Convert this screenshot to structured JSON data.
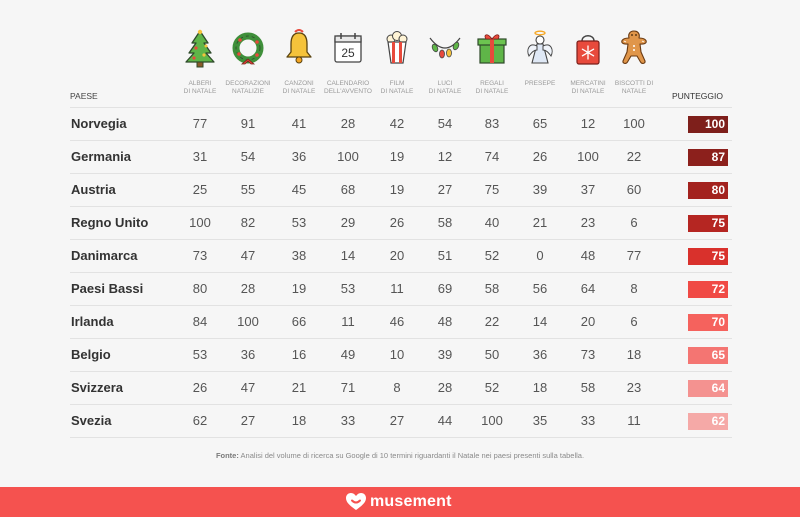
{
  "chart_data": {
    "type": "table",
    "columns": [
      {
        "label_lines": [
          "ALBERI",
          "DI NATALE"
        ],
        "icon": "christmas-tree-icon"
      },
      {
        "label_lines": [
          "DECORAZIONI",
          "NATALIZIE"
        ],
        "icon": "wreath-icon"
      },
      {
        "label_lines": [
          "CANZONI",
          "DI NATALE"
        ],
        "icon": "bell-icon"
      },
      {
        "label_lines": [
          "CALENDARIO",
          "DELL'AVVENTO"
        ],
        "icon": "advent-calendar-icon",
        "icon_text": "25"
      },
      {
        "label_lines": [
          "FILM",
          "DI NATALE"
        ],
        "icon": "popcorn-icon"
      },
      {
        "label_lines": [
          "LUCI",
          "DI NATALE"
        ],
        "icon": "string-lights-icon"
      },
      {
        "label_lines": [
          "REGALI",
          "DI NATALE"
        ],
        "icon": "gift-icon"
      },
      {
        "label_lines": [
          "PRESEPE"
        ],
        "icon": "angel-icon"
      },
      {
        "label_lines": [
          "MERCATINI",
          "DI NATALE"
        ],
        "icon": "shopping-bag-icon"
      },
      {
        "label_lines": [
          "BISCOTTI DI",
          "NATALE"
        ],
        "icon": "gingerbread-icon"
      }
    ],
    "row_header": "PAESE",
    "score_header": "PUNTEGGIO",
    "rows": [
      {
        "country": "Norvegia",
        "values": [
          77,
          91,
          41,
          28,
          42,
          54,
          83,
          65,
          12,
          100
        ],
        "score": 100,
        "color": "#7e1f1b"
      },
      {
        "country": "Germania",
        "values": [
          31,
          54,
          36,
          100,
          19,
          12,
          74,
          26,
          100,
          22
        ],
        "score": 87,
        "color": "#8c201c"
      },
      {
        "country": "Austria",
        "values": [
          25,
          55,
          45,
          68,
          19,
          27,
          75,
          39,
          37,
          60
        ],
        "score": 80,
        "color": "#a3221e"
      },
      {
        "country": "Regno Unito",
        "values": [
          100,
          82,
          53,
          29,
          26,
          58,
          40,
          21,
          23,
          6
        ],
        "score": 75,
        "color": "#b52622"
      },
      {
        "country": "Danimarca",
        "values": [
          73,
          47,
          38,
          14,
          20,
          51,
          52,
          0,
          48,
          77
        ],
        "score": 75,
        "color": "#d9312c"
      },
      {
        "country": "Paesi Bassi",
        "values": [
          80,
          28,
          19,
          53,
          11,
          69,
          58,
          56,
          64,
          8
        ],
        "score": 72,
        "color": "#f04a45"
      },
      {
        "country": "Irlanda",
        "values": [
          84,
          100,
          66,
          11,
          46,
          48,
          22,
          14,
          20,
          6
        ],
        "score": 70,
        "color": "#f5625d"
      },
      {
        "country": "Belgio",
        "values": [
          53,
          36,
          16,
          49,
          10,
          39,
          50,
          36,
          73,
          18
        ],
        "score": 65,
        "color": "#f47572"
      },
      {
        "country": "Svizzera",
        "values": [
          26,
          47,
          21,
          71,
          8,
          28,
          52,
          18,
          58,
          23
        ],
        "score": 64,
        "color": "#f49290"
      },
      {
        "country": "Svezia",
        "values": [
          62,
          27,
          18,
          33,
          27,
          44,
          100,
          35,
          33,
          11
        ],
        "score": 62,
        "color": "#f5a9a7"
      }
    ]
  },
  "source": {
    "label": "Fonte:",
    "text": " Analisi del volume di ricerca su Google di 10 termini riguardanti il Natale nei paesi presenti sulla tabella."
  },
  "footer": {
    "brand": "musement",
    "color": "#f5524f"
  }
}
